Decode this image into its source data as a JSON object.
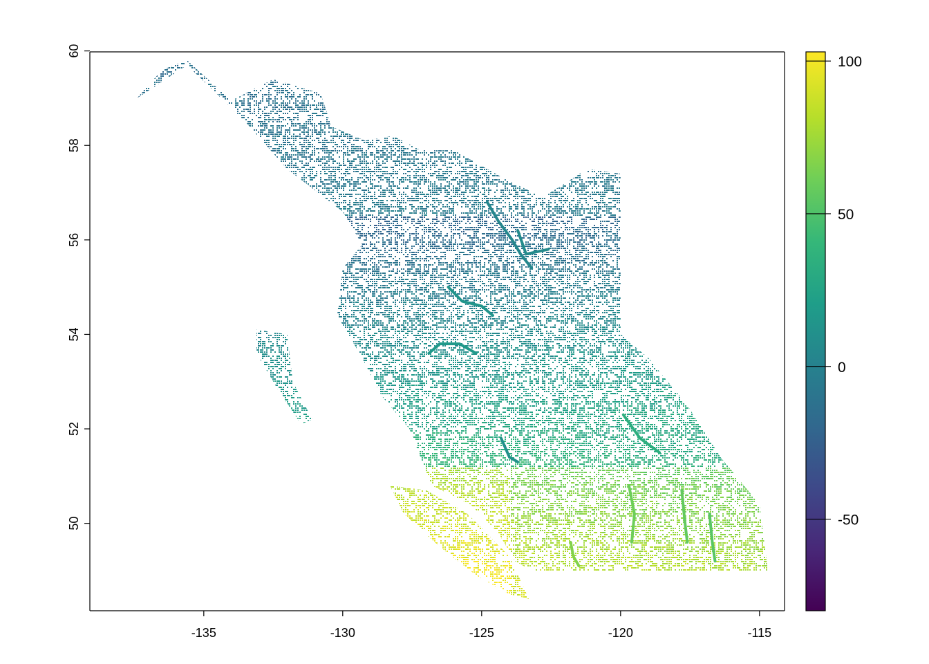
{
  "map": {
    "x_axis": {
      "range": [
        -139.1,
        -114.1
      ],
      "ticks": [
        {
          "value": -135,
          "label": "-135"
        },
        {
          "value": -130,
          "label": "-130"
        },
        {
          "value": -125,
          "label": "-125"
        },
        {
          "value": -120,
          "label": "-120"
        },
        {
          "value": -115,
          "label": "-115"
        }
      ]
    },
    "y_axis": {
      "range": [
        48.15,
        59.98
      ],
      "tick_label_orientation": "vertical",
      "ticks": [
        {
          "value": 50,
          "label": "50"
        },
        {
          "value": 52,
          "label": "52"
        },
        {
          "value": 54,
          "label": "54"
        },
        {
          "value": 56,
          "label": "56"
        },
        {
          "value": 58,
          "label": "58"
        },
        {
          "value": 60,
          "label": "60"
        }
      ]
    },
    "colorbar": {
      "palette": "viridis",
      "range": [
        -80,
        103
      ],
      "colors": [
        "#440154",
        "#482878",
        "#3e4989",
        "#31688e",
        "#26828e",
        "#1f9e89",
        "#35b779",
        "#6ece58",
        "#b5de2b",
        "#fde725"
      ],
      "ticks": [
        {
          "value": 100,
          "label": "100"
        },
        {
          "value": 50,
          "label": "50"
        },
        {
          "value": 0,
          "label": "0"
        },
        {
          "value": -50,
          "label": "-50"
        }
      ]
    },
    "region_outline_lonlat": [
      [
        -137.4,
        59.0
      ],
      [
        -136.5,
        59.6
      ],
      [
        -135.6,
        59.8
      ],
      [
        -134.3,
        59.1
      ],
      [
        -134.0,
        58.95
      ],
      [
        -132.5,
        59.4
      ],
      [
        -130.8,
        59.1
      ],
      [
        -130.4,
        58.4
      ],
      [
        -129.2,
        58.1
      ],
      [
        -128.2,
        58.2
      ],
      [
        -127.2,
        57.9
      ],
      [
        -126.0,
        57.9
      ],
      [
        -124.2,
        57.3
      ],
      [
        -122.8,
        56.9
      ],
      [
        -121.2,
        57.5
      ],
      [
        -120.0,
        57.4
      ],
      [
        -120.0,
        54.0
      ],
      [
        -119.0,
        53.5
      ],
      [
        -117.6,
        52.5
      ],
      [
        -116.4,
        51.4
      ],
      [
        -115.0,
        50.4
      ],
      [
        -114.7,
        49.0
      ],
      [
        -123.2,
        49.0
      ],
      [
        -123.8,
        49.2
      ],
      [
        -124.4,
        49.8
      ],
      [
        -125.4,
        50.4
      ],
      [
        -126.8,
        50.8
      ],
      [
        -127.6,
        52.0
      ],
      [
        -128.6,
        52.7
      ],
      [
        -129.3,
        53.5
      ],
      [
        -130.2,
        54.4
      ],
      [
        -130.0,
        55.4
      ],
      [
        -129.3,
        55.9
      ],
      [
        -130.0,
        56.6
      ],
      [
        -132.0,
        57.5
      ],
      [
        -133.5,
        58.5
      ],
      [
        -135.6,
        59.7
      ]
    ],
    "vancouver_island_outline_lonlat": [
      [
        -128.3,
        50.8
      ],
      [
        -127.0,
        50.7
      ],
      [
        -125.5,
        50.2
      ],
      [
        -124.0,
        49.3
      ],
      [
        -123.3,
        48.4
      ],
      [
        -124.0,
        48.5
      ],
      [
        -125.2,
        48.9
      ],
      [
        -126.5,
        49.5
      ],
      [
        -127.8,
        50.2
      ]
    ],
    "haida_gwaii_outline_lonlat": [
      [
        -133.1,
        54.1
      ],
      [
        -132.0,
        54.0
      ],
      [
        -131.8,
        53.0
      ],
      [
        -131.1,
        52.2
      ],
      [
        -131.5,
        52.1
      ],
      [
        -132.4,
        52.9
      ],
      [
        -133.1,
        53.6
      ]
    ],
    "lakes_lonlat": [
      {
        "path": [
          [
            -124.8,
            56.8
          ],
          [
            -124.4,
            56.4
          ],
          [
            -123.9,
            56.0
          ],
          [
            -123.6,
            55.7
          ],
          [
            -123.2,
            55.4
          ]
        ],
        "value": 5
      },
      {
        "path": [
          [
            -126.2,
            55.0
          ],
          [
            -125.7,
            54.7
          ],
          [
            -125.0,
            54.6
          ],
          [
            -124.6,
            54.4
          ]
        ],
        "value": 15
      },
      {
        "path": [
          [
            -126.9,
            53.6
          ],
          [
            -126.5,
            53.8
          ],
          [
            -125.8,
            53.8
          ],
          [
            -125.2,
            53.6
          ]
        ],
        "value": 18
      },
      {
        "path": [
          [
            -123.7,
            56.2
          ],
          [
            -123.4,
            55.7
          ],
          [
            -122.6,
            55.8
          ]
        ],
        "value": 8
      },
      {
        "path": [
          [
            -121.8,
            49.6
          ],
          [
            -121.7,
            49.3
          ],
          [
            -121.5,
            49.1
          ]
        ],
        "value": 68
      },
      {
        "path": [
          [
            -119.7,
            50.8
          ],
          [
            -119.5,
            50.2
          ],
          [
            -119.6,
            49.6
          ]
        ],
        "value": 62
      },
      {
        "path": [
          [
            -117.8,
            50.7
          ],
          [
            -117.7,
            50.1
          ],
          [
            -117.6,
            49.6
          ]
        ],
        "value": 58
      },
      {
        "path": [
          [
            -116.8,
            50.2
          ],
          [
            -116.7,
            49.6
          ],
          [
            -116.6,
            49.2
          ]
        ],
        "value": 55
      },
      {
        "path": [
          [
            -119.9,
            52.3
          ],
          [
            -119.3,
            51.8
          ],
          [
            -118.6,
            51.5
          ]
        ],
        "value": 35
      },
      {
        "path": [
          [
            -124.3,
            51.8
          ],
          [
            -124.0,
            51.4
          ],
          [
            -123.7,
            51.3
          ]
        ],
        "value": 12
      }
    ]
  }
}
